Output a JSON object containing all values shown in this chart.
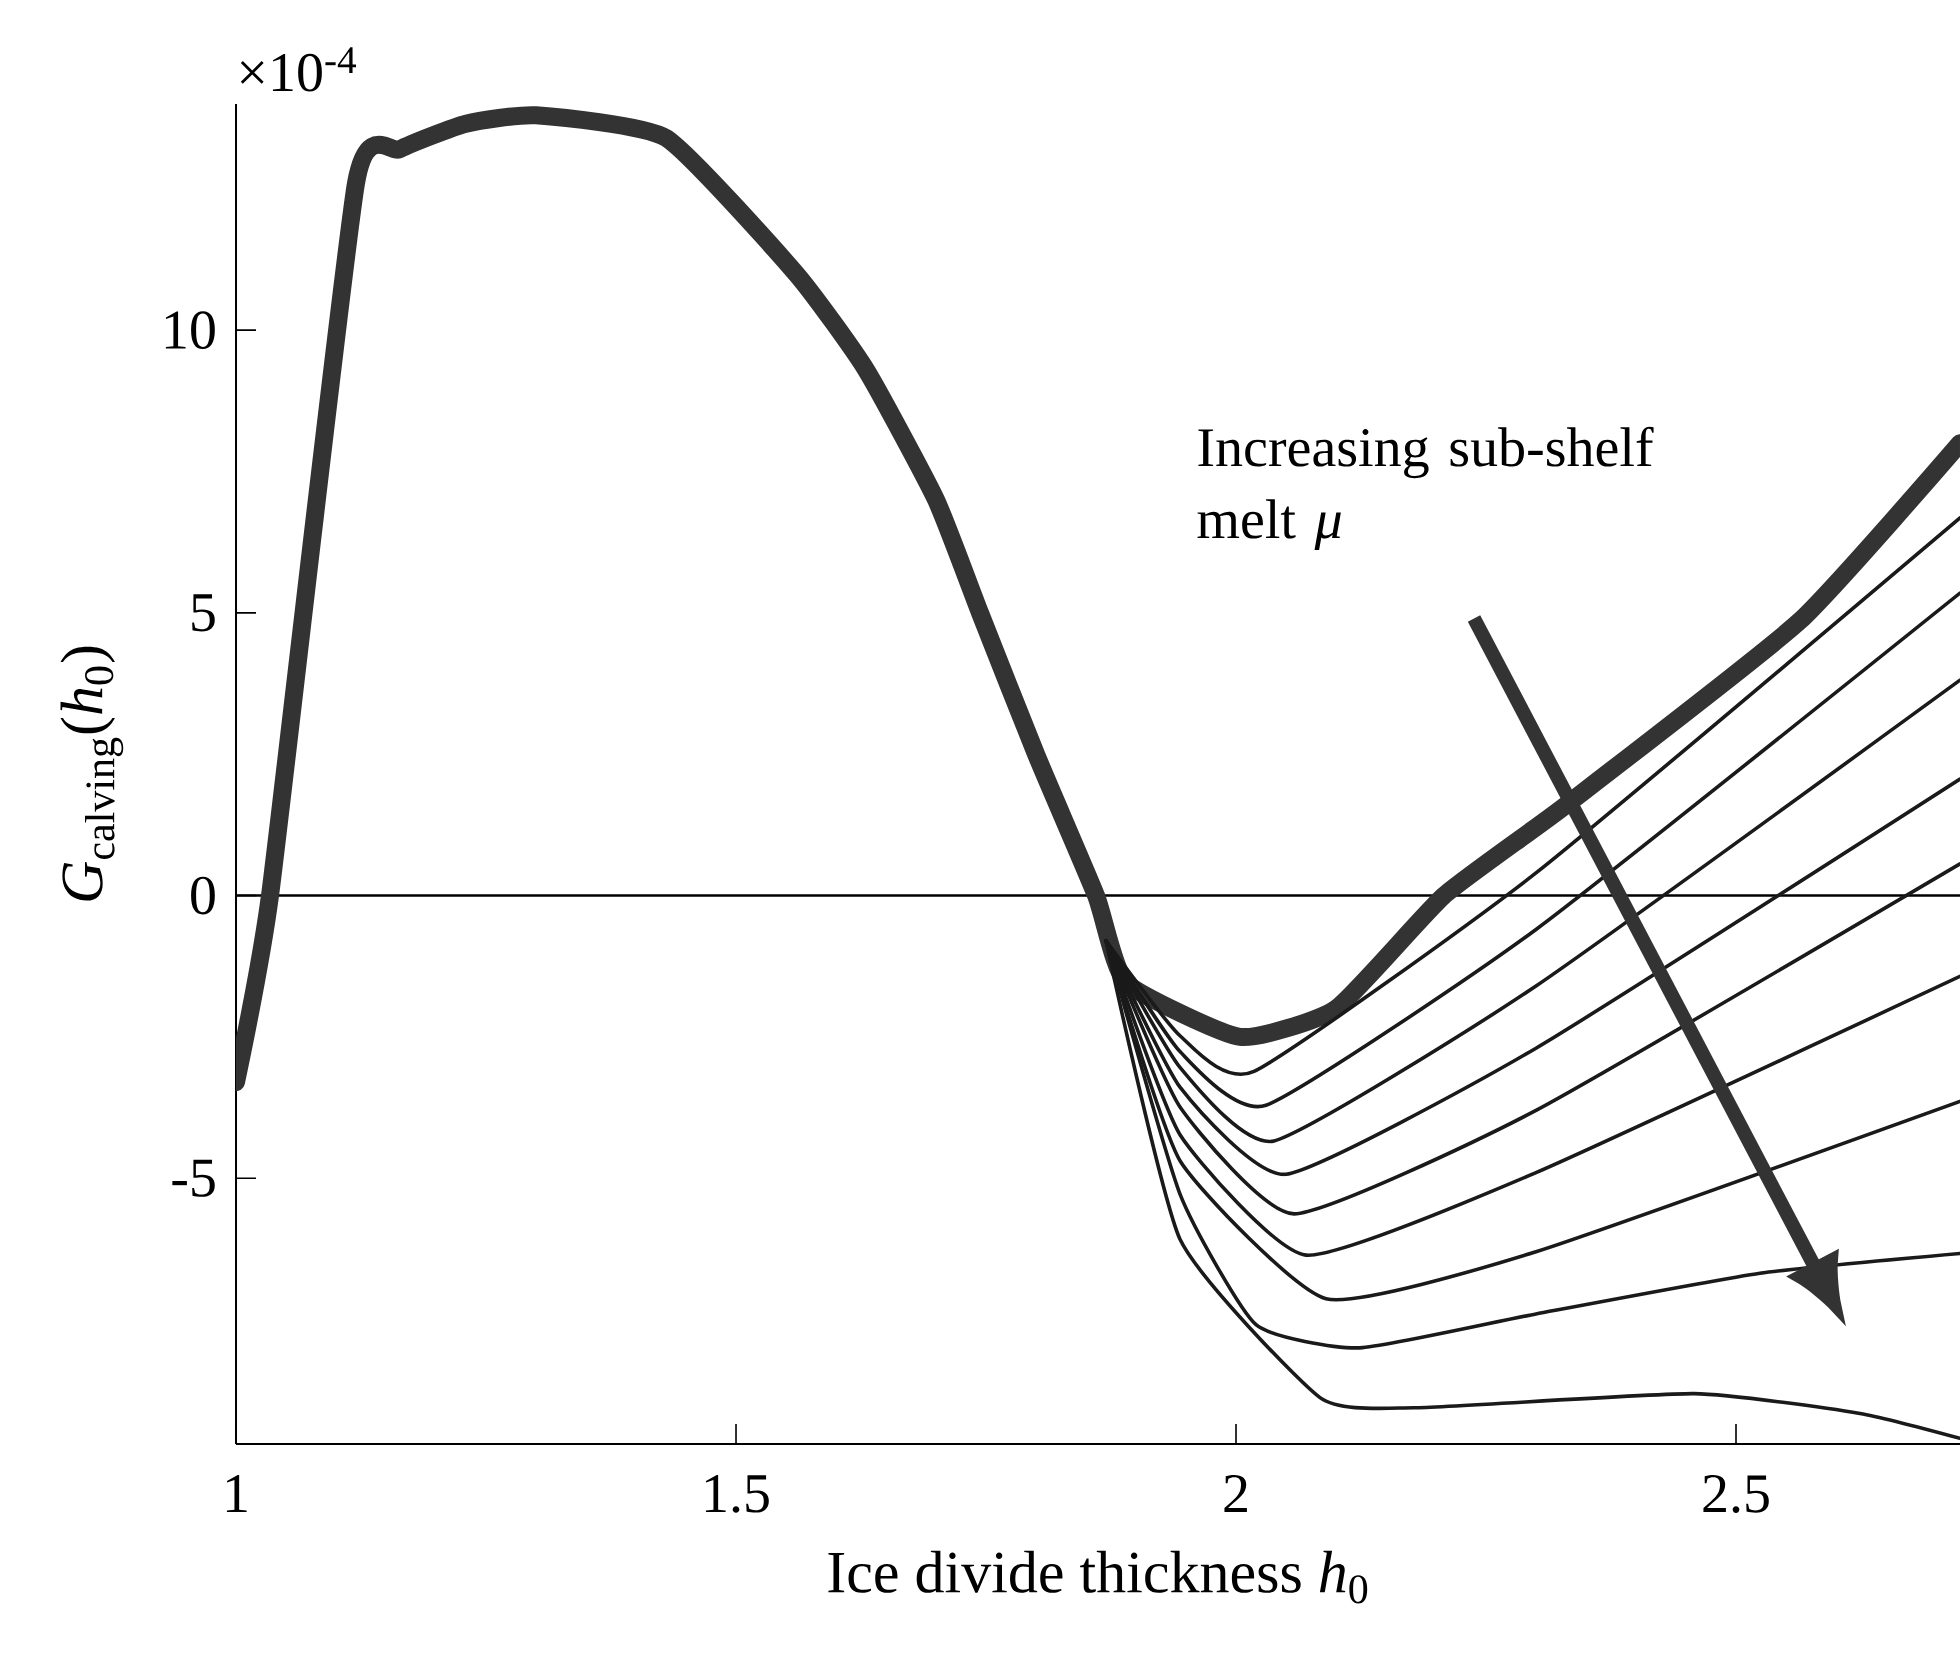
{
  "chart_data": {
    "type": "line",
    "xlabel": "Ice divide thickness *h*$_{0}$",
    "ylabel": "*G*$_{calving}$(*h*$_{0}$)",
    "annotations": [
      "×10$^{-4}$",
      "Increasing sub-shelf melt *μ*"
    ],
    "xlim": [
      1,
      2.724
    ],
    "ylim": [
      -9.7,
      14
    ],
    "xticks": [
      1,
      1.5,
      2,
      2.5
    ],
    "yticks": [
      -5,
      0,
      5,
      10
    ],
    "ref_lines": [
      {
        "axis": "y",
        "value": 0,
        "color": "#000000"
      }
    ],
    "series": [
      {
        "color": "#333333",
        "x": [
          1,
          1.034,
          1.12,
          1.164,
          1.23,
          1.3,
          1.43,
          1.56,
          1.63,
          1.7,
          1.744,
          1.8,
          1.86,
          1.89,
          2.004,
          2.1,
          2.208,
          2.33,
          2.564,
          2.724
        ],
        "values": [
          -3.3,
          0,
          12.6,
          13.2,
          13.65,
          13.8,
          13.4,
          11.0,
          9.3,
          7.0,
          5.0,
          2.5,
          0,
          -1.54,
          -2.5,
          -2.0,
          0,
          1.6,
          4.86,
          8.0
        ]
      },
      {
        "color": "#1a1a1a",
        "x": [
          1.87,
          1.944,
          2.018,
          2.3,
          2.724
        ],
        "values": [
          -0.8,
          -2.48,
          -3.11,
          0.4,
          6.68
        ]
      },
      {
        "color": "#1a1a1a",
        "x": [
          1.87,
          1.944,
          2.03,
          2.3,
          2.724
        ],
        "values": [
          -0.8,
          -2.76,
          -3.71,
          -0.6,
          5.35
        ]
      },
      {
        "color": "#1a1a1a",
        "x": [
          1.87,
          1.944,
          2.038,
          2.3,
          2.724
        ],
        "values": [
          -0.8,
          -3.04,
          -4.34,
          -1.6,
          3.81
        ]
      },
      {
        "color": "#1a1a1a",
        "x": [
          1.87,
          1.944,
          2.05,
          2.3,
          2.724
        ],
        "values": [
          -0.8,
          -3.39,
          -4.93,
          -2.7,
          2.06
        ]
      },
      {
        "color": "#1a1a1a",
        "x": [
          1.87,
          1.944,
          2.058,
          2.3,
          2.724
        ],
        "values": [
          -0.8,
          -3.74,
          -5.63,
          -3.8,
          0.56
        ]
      },
      {
        "color": "#1a1a1a",
        "x": [
          1.87,
          1.944,
          2.07,
          2.3,
          2.724
        ],
        "values": [
          -0.8,
          -4.23,
          -6.36,
          -4.9,
          -1.43
        ]
      },
      {
        "color": "#1a1a1a",
        "x": [
          1.87,
          1.944,
          2.09,
          2.3,
          2.724
        ],
        "values": [
          -0.8,
          -4.69,
          -7.13,
          -6.3,
          -3.64
        ]
      },
      {
        "color": "#1a1a1a",
        "x": [
          1.87,
          1.944,
          2.02,
          2.124,
          2.3,
          2.524,
          2.724
        ],
        "values": [
          -0.8,
          -5.28,
          -7.59,
          -8.0,
          -7.4,
          -6.68,
          -6.33
        ]
      },
      {
        "color": "#1a1a1a",
        "x": [
          1.87,
          1.944,
          2.084,
          2.178,
          2.458,
          2.624,
          2.724
        ],
        "values": [
          -0.8,
          -6.08,
          -8.88,
          -9.06,
          -8.81,
          -9.16,
          -9.6
        ]
      }
    ]
  }
}
